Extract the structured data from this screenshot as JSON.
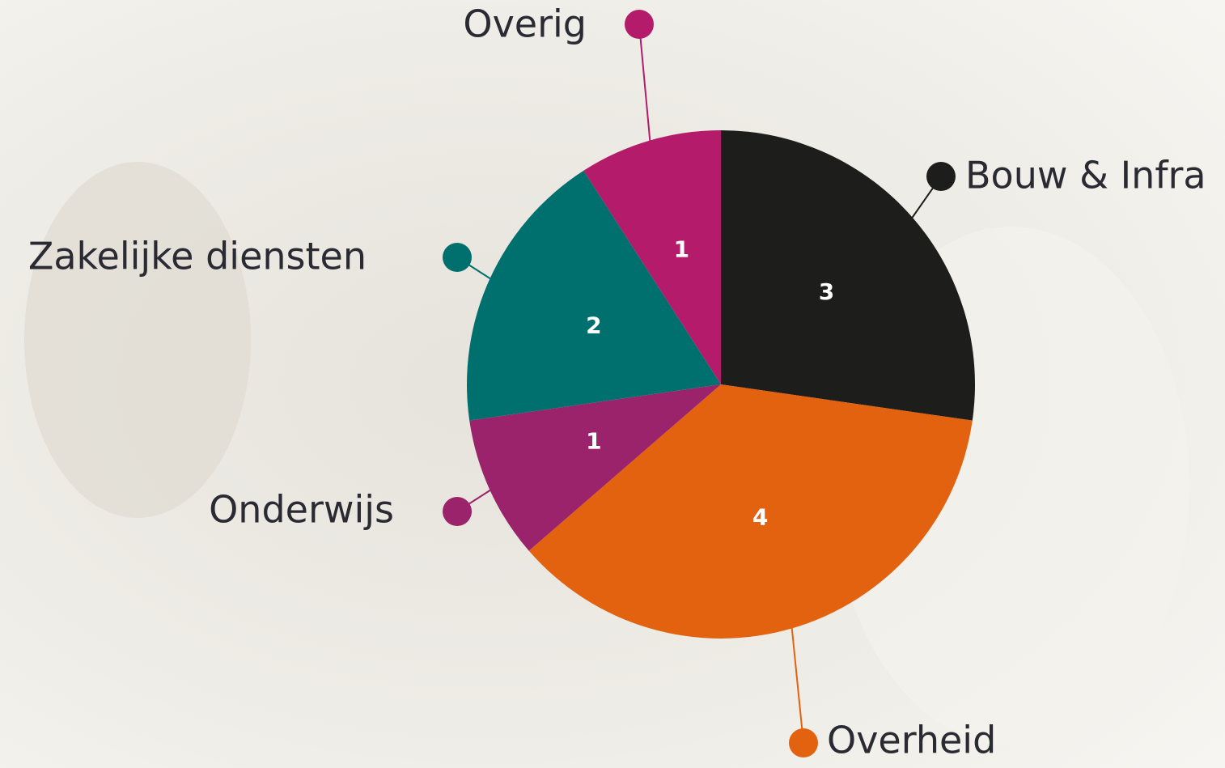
{
  "chart_data": {
    "type": "pie",
    "categories": [
      "Bouw & Infra",
      "Overheid",
      "Onderwijs",
      "Zakelijke diensten",
      "Overig"
    ],
    "values": [
      3,
      4,
      1,
      2,
      1
    ],
    "colors": [
      "#1d1d1b",
      "#e2620f",
      "#9b236b",
      "#00706f",
      "#b41b6a"
    ]
  }
}
